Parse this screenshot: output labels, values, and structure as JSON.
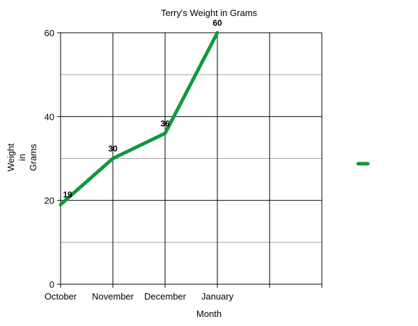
{
  "colors": {
    "series": "#0f9a3a",
    "major_grid": "#000000",
    "minor_grid": "#a0a0a0",
    "background": "#ffffff"
  },
  "chart_data": {
    "type": "line",
    "title": "Terry's Weight in Grams",
    "xlabel": "Month",
    "ylabel_lines": [
      "Weight",
      "in",
      "Grams"
    ],
    "categories": [
      "October",
      "November",
      "December",
      "January"
    ],
    "series": [
      {
        "values": [
          19,
          30,
          36,
          60
        ],
        "color": "#0f9a3a"
      }
    ],
    "data_labels": [
      "19",
      "30",
      "36",
      "60"
    ],
    "ylim": [
      0,
      60
    ],
    "yticks": [
      0,
      20,
      40,
      60
    ],
    "ytick_labels": [
      "0",
      "20",
      "40",
      "60"
    ],
    "minor_y_gridlines": [
      10,
      30,
      50
    ],
    "grid": true,
    "legend": {
      "position": "right",
      "entries": [
        {
          "color": "#0f9a3a"
        }
      ]
    }
  }
}
